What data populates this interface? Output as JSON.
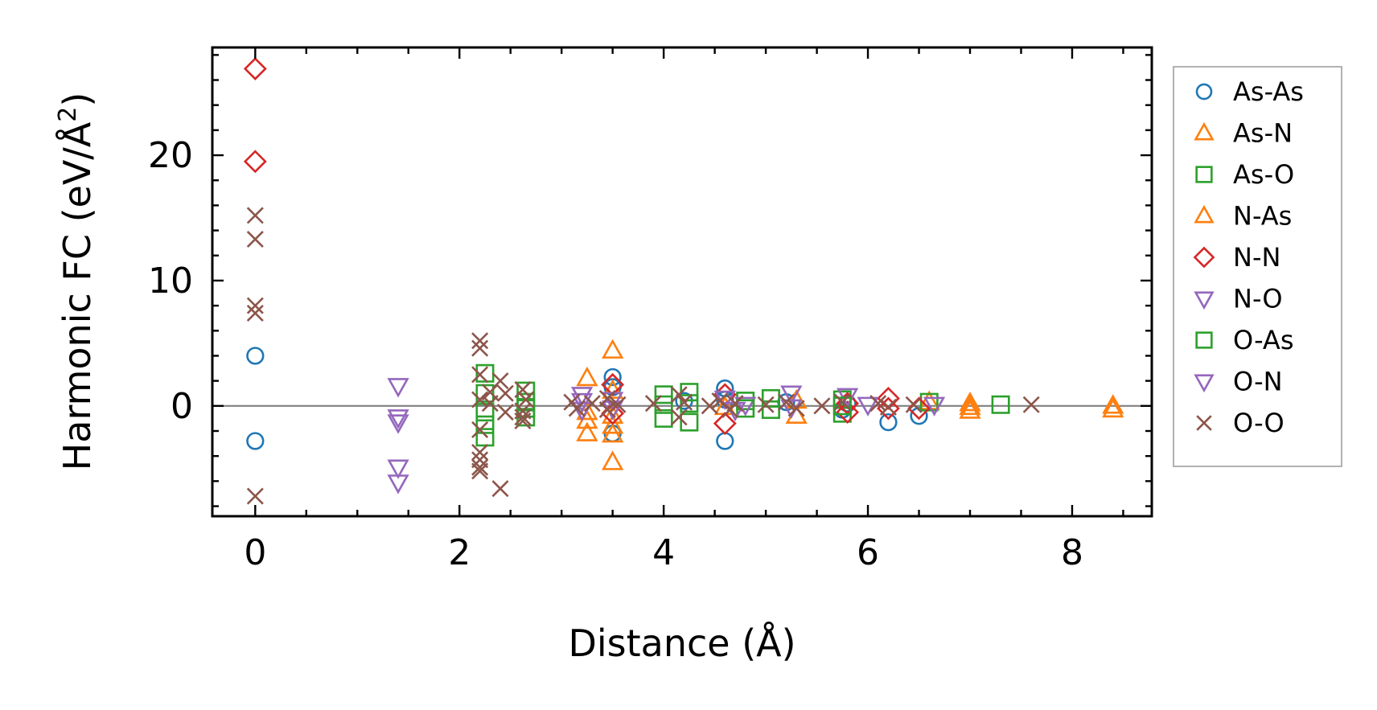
{
  "chart_data": {
    "type": "scatter",
    "title": "",
    "xlabel": "Distance (Å)",
    "ylabel": "Harmonic FC (eV/Å",
    "ylabel_superscript": "2",
    "ylabel_suffix": ")",
    "xlim": [
      -0.42,
      8.78
    ],
    "ylim": [
      -8.8,
      28.6
    ],
    "xticks": [
      0,
      2,
      4,
      6,
      8
    ],
    "yticks": [
      0,
      10,
      20
    ],
    "xtick_labels": [
      "0",
      "2",
      "4",
      "6",
      "8"
    ],
    "ytick_labels": [
      "0",
      "10",
      "20"
    ],
    "xminor_step": 0.5,
    "yminor_step": 2,
    "zero_line": true,
    "grid": false,
    "legend_position": "outside-right",
    "series": [
      {
        "name": "As-As",
        "marker": "circle",
        "color": "#1f77b4",
        "points": [
          [
            0,
            4.0
          ],
          [
            0,
            -2.8
          ],
          [
            3.5,
            2.3
          ],
          [
            3.5,
            1.5
          ],
          [
            3.5,
            -2.2
          ],
          [
            4.6,
            1.4
          ],
          [
            4.6,
            0.5
          ],
          [
            4.6,
            -2.8
          ],
          [
            5.75,
            -0.3
          ],
          [
            6.2,
            -1.3
          ],
          [
            6.5,
            -0.8
          ],
          [
            5.2,
            0.3
          ],
          [
            4.2,
            0.4
          ],
          [
            5.8,
            0.2
          ]
        ]
      },
      {
        "name": "As-N",
        "marker": "triangle-up",
        "color": "#ff7f0e",
        "points": [
          [
            3.25,
            2.2
          ],
          [
            3.25,
            -1.2
          ],
          [
            3.25,
            -2.2
          ],
          [
            3.5,
            4.4
          ],
          [
            3.5,
            -1.6
          ],
          [
            3.5,
            -2.3
          ],
          [
            3.5,
            -4.5
          ],
          [
            3.5,
            1.2
          ],
          [
            5.3,
            -0.8
          ],
          [
            6.6,
            0.3
          ],
          [
            7.0,
            0.2
          ],
          [
            7.0,
            -0.4
          ],
          [
            8.4,
            0.0
          ],
          [
            8.4,
            -0.3
          ]
        ]
      },
      {
        "name": "As-O",
        "marker": "square",
        "color": "#2ca02c",
        "points": [
          [
            2.25,
            2.6
          ],
          [
            2.25,
            1.0
          ],
          [
            2.25,
            -0.5
          ],
          [
            2.25,
            -2.5
          ],
          [
            2.65,
            1.2
          ],
          [
            2.65,
            -0.9
          ],
          [
            2.65,
            0.3
          ],
          [
            4.0,
            0.9
          ],
          [
            4.0,
            -1.0
          ],
          [
            4.25,
            1.1
          ],
          [
            4.25,
            -1.3
          ],
          [
            4.25,
            0.2
          ],
          [
            4.8,
            0.4
          ],
          [
            5.05,
            0.6
          ],
          [
            5.05,
            -0.3
          ],
          [
            5.75,
            0.5
          ],
          [
            5.75,
            -0.6
          ],
          [
            6.6,
            0.3
          ],
          [
            7.3,
            0.1
          ]
        ]
      },
      {
        "name": "N-As",
        "marker": "triangle-up",
        "color": "#ff7f0e",
        "points": [
          [
            3.25,
            -0.5
          ],
          [
            3.5,
            -0.8
          ],
          [
            4.6,
            -0.1
          ],
          [
            5.3,
            0.4
          ],
          [
            7.0,
            -0.1
          ]
        ]
      },
      {
        "name": "N-N",
        "marker": "diamond",
        "color": "#d62728",
        "points": [
          [
            0,
            26.9
          ],
          [
            0,
            19.5
          ],
          [
            3.5,
            1.7
          ],
          [
            3.5,
            -0.6
          ],
          [
            4.6,
            0.9
          ],
          [
            4.6,
            -1.4
          ],
          [
            5.8,
            0.2
          ],
          [
            5.8,
            -0.5
          ],
          [
            6.2,
            0.6
          ],
          [
            6.2,
            -0.2
          ],
          [
            6.5,
            -0.2
          ]
        ]
      },
      {
        "name": "N-O",
        "marker": "triangle-down",
        "color": "#9467bd",
        "points": [
          [
            1.4,
            1.6
          ],
          [
            1.4,
            -0.9
          ],
          [
            1.4,
            -1.3
          ],
          [
            1.4,
            -4.9
          ],
          [
            1.4,
            -6.1
          ],
          [
            3.2,
            0.9
          ],
          [
            3.2,
            -0.3
          ],
          [
            3.5,
            0.5
          ],
          [
            4.6,
            0.6
          ],
          [
            4.8,
            0.1
          ],
          [
            5.25,
            1.0
          ],
          [
            5.8,
            0.8
          ],
          [
            6.65,
            0.1
          ]
        ]
      },
      {
        "name": "O-As",
        "marker": "square",
        "color": "#2ca02c",
        "points": [
          [
            2.25,
            -1.5
          ],
          [
            2.65,
            -0.2
          ],
          [
            4.0,
            0.1
          ],
          [
            4.8,
            -0.2
          ],
          [
            5.75,
            0.0
          ]
        ]
      },
      {
        "name": "O-N",
        "marker": "triangle-down",
        "color": "#9467bd",
        "points": [
          [
            3.2,
            0.4
          ],
          [
            3.5,
            -0.2
          ],
          [
            4.7,
            -0.3
          ],
          [
            5.25,
            -0.1
          ],
          [
            6.0,
            0.1
          ]
        ]
      },
      {
        "name": "O-O",
        "marker": "x",
        "color": "#8c564b",
        "points": [
          [
            0,
            15.2
          ],
          [
            0,
            13.3
          ],
          [
            0,
            8.0
          ],
          [
            0,
            7.4
          ],
          [
            0,
            -7.2
          ],
          [
            2.2,
            5.2
          ],
          [
            2.2,
            4.6
          ],
          [
            2.2,
            2.5
          ],
          [
            2.2,
            0.5
          ],
          [
            2.2,
            -1.9
          ],
          [
            2.2,
            -3.7
          ],
          [
            2.2,
            -4.3
          ],
          [
            2.2,
            -4.9
          ],
          [
            2.2,
            -5.2
          ],
          [
            2.3,
            1.1
          ],
          [
            2.3,
            0.2
          ],
          [
            2.4,
            -6.6
          ],
          [
            2.4,
            2.0
          ],
          [
            2.45,
            1.0
          ],
          [
            2.45,
            -0.5
          ],
          [
            2.62,
            1.3
          ],
          [
            2.62,
            -0.4
          ],
          [
            2.62,
            -0.9
          ],
          [
            2.62,
            -1.2
          ],
          [
            2.65,
            0.5
          ],
          [
            3.1,
            0.3
          ],
          [
            3.15,
            -0.2
          ],
          [
            3.3,
            0.2
          ],
          [
            3.45,
            0.6
          ],
          [
            3.45,
            -0.3
          ],
          [
            3.55,
            0.1
          ],
          [
            3.9,
            0.2
          ],
          [
            4.15,
            0.9
          ],
          [
            4.15,
            -0.9
          ],
          [
            4.2,
            0.3
          ],
          [
            4.45,
            0.0
          ],
          [
            4.55,
            0.4
          ],
          [
            4.65,
            -0.3
          ],
          [
            4.7,
            0.2
          ],
          [
            5.0,
            0.1
          ],
          [
            5.2,
            0.3
          ],
          [
            5.3,
            -0.2
          ],
          [
            5.55,
            0.0
          ],
          [
            5.75,
            0.3
          ],
          [
            6.1,
            0.2
          ],
          [
            6.2,
            -0.1
          ],
          [
            6.45,
            0.1
          ],
          [
            7.6,
            0.1
          ]
        ]
      }
    ]
  }
}
